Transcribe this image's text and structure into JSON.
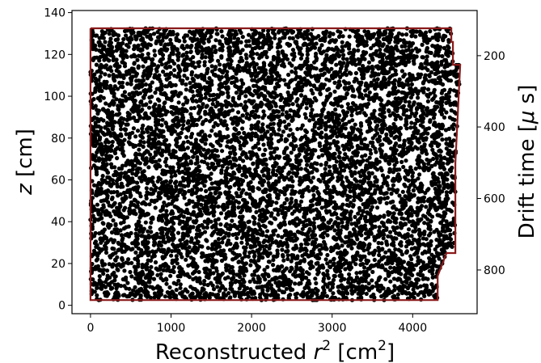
{
  "chart_data": {
    "type": "scatter",
    "title": "",
    "marker_color": "#000000",
    "boundary_color": "#8b1a1a",
    "x_axis": {
      "label_prefix": "Reconstructed ",
      "label_var": "r",
      "label_var_exp": "2",
      "label_unit_open": " [cm",
      "label_unit_exp": "2",
      "label_unit_close": "]",
      "range": [
        -230,
        4800
      ],
      "ticks": [
        0,
        1000,
        2000,
        3000,
        4000
      ],
      "tick_labels": [
        "0",
        "1000",
        "2000",
        "3000",
        "4000"
      ]
    },
    "y_axis": {
      "label_var": "z",
      "label_unit": " [cm]",
      "range": [
        -4,
        141
      ],
      "ticks": [
        0,
        20,
        40,
        60,
        80,
        100,
        120,
        140
      ],
      "tick_labels": [
        "0",
        "20",
        "40",
        "60",
        "80",
        "100",
        "120",
        "140"
      ]
    },
    "y2_axis": {
      "label": "Drift time [",
      "label_greek": "μ",
      "label_unit": " s]",
      "ticks": [
        200,
        400,
        600,
        800
      ],
      "tick_labels": [
        "200",
        "400",
        "600",
        "800"
      ],
      "tick_z_positions": [
        119.4,
        85.3,
        51.1,
        16.9
      ]
    },
    "boundary": {
      "x": [
        0,
        4480,
        4480,
        4500,
        4500,
        4590,
        4530,
        4530,
        4420,
        4310,
        4310,
        0,
        0
      ],
      "z": [
        132.5,
        132.5,
        126,
        126,
        115,
        115,
        68,
        25,
        25,
        14,
        2.5,
        2.5,
        132.5
      ]
    },
    "point_density": 0.72,
    "grid": false,
    "legend": "none"
  }
}
